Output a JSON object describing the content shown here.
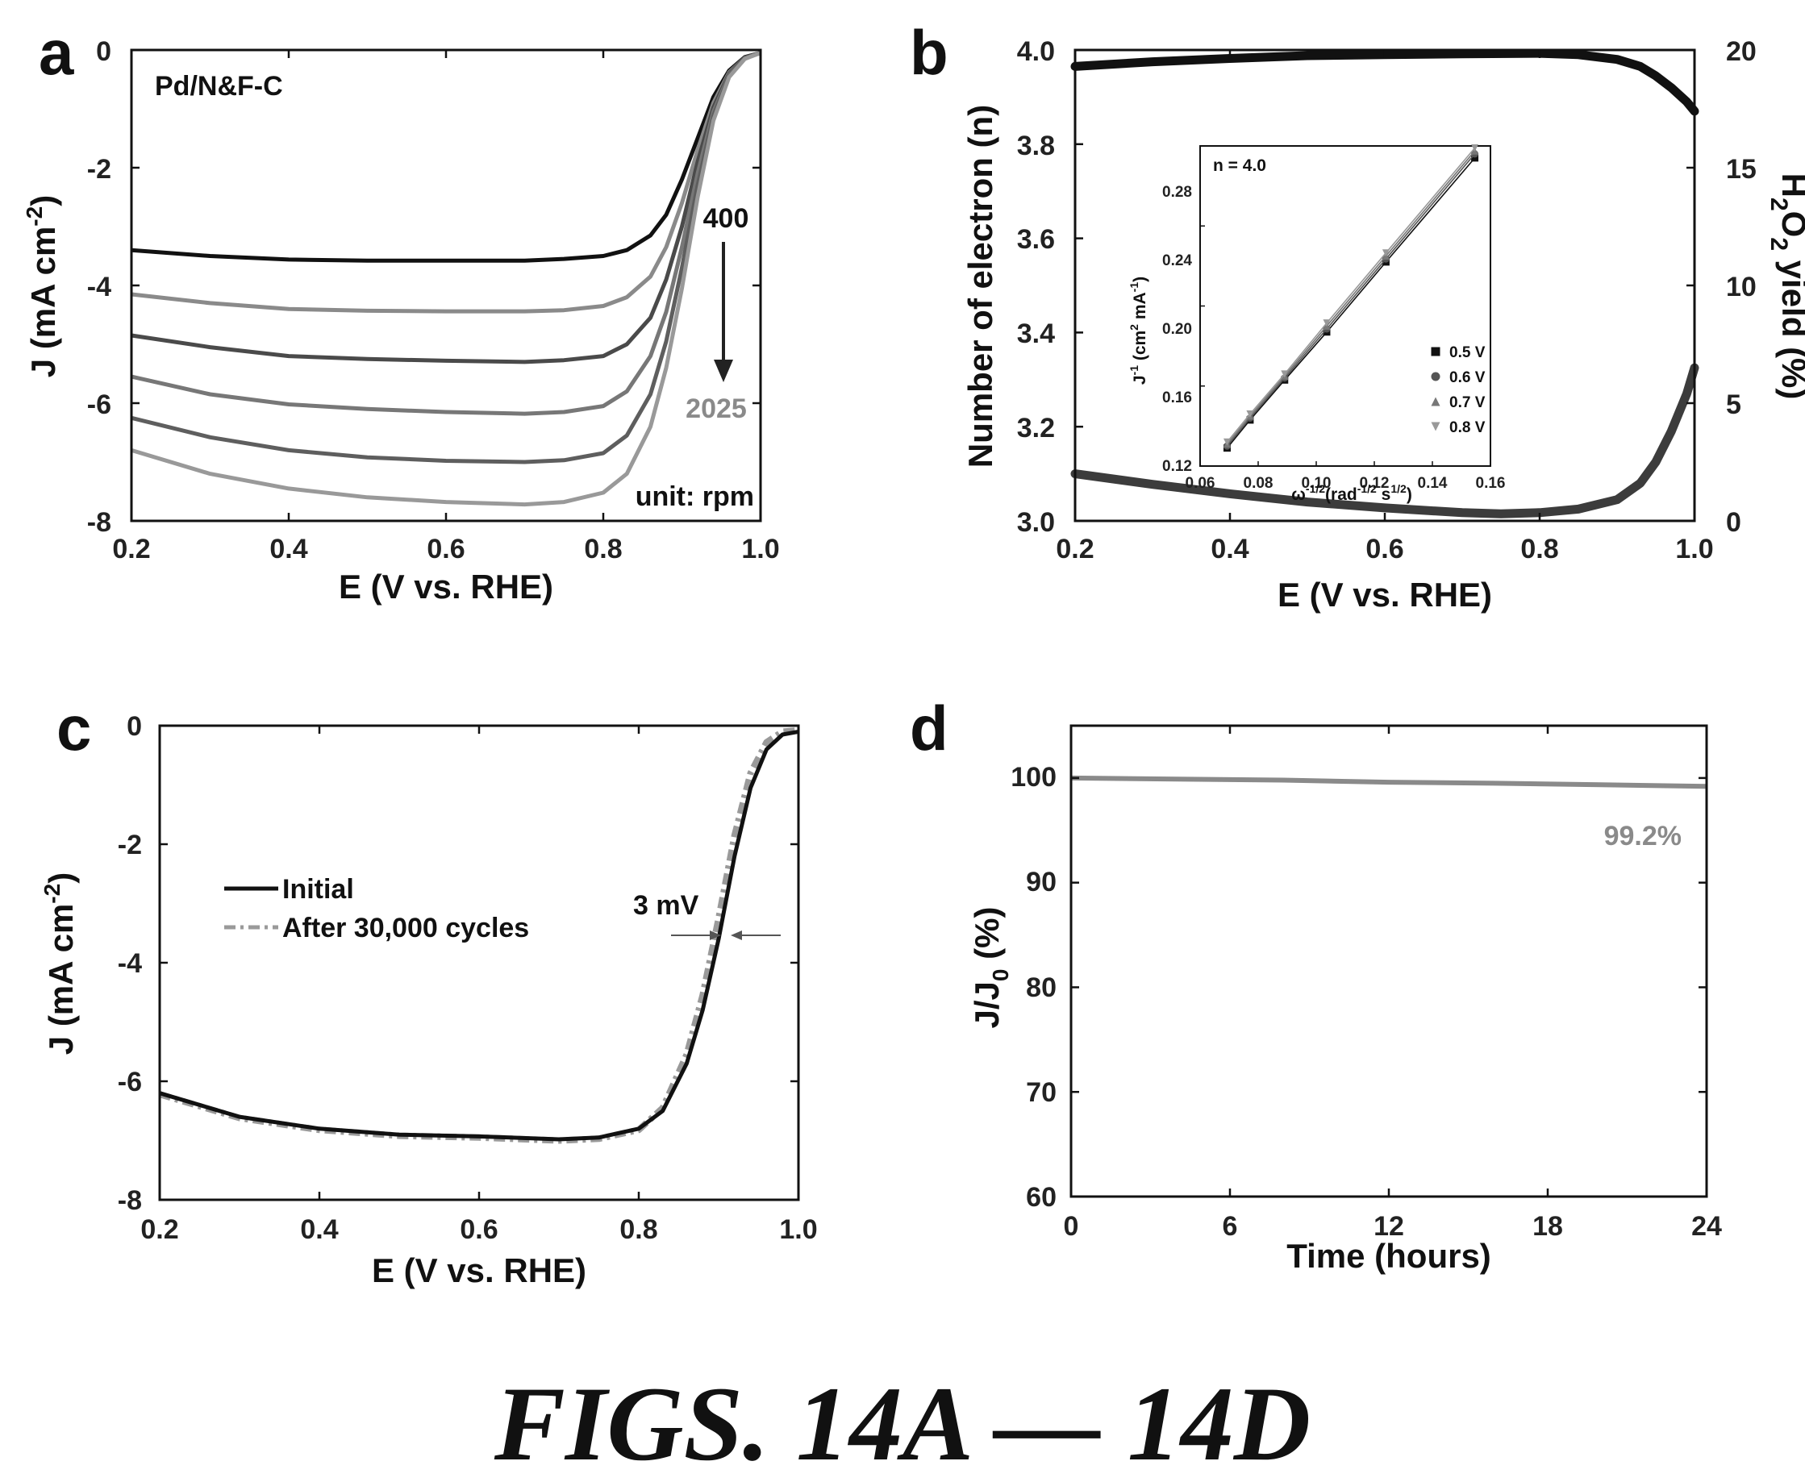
{
  "caption": "FIGS. 14A — 14D",
  "chart_data": [
    {
      "id": "a",
      "type": "line",
      "panel_label": "a",
      "xlabel": "E (V vs. RHE)",
      "ylabel": "J (mA cm",
      "ylabel_sup": "-2",
      "ylabel_end": ")",
      "xlim": [
        0.2,
        1.0
      ],
      "ylim": [
        -8,
        0
      ],
      "xticks": [
        "0.2",
        "0.4",
        "0.6",
        "0.8",
        "1.0"
      ],
      "yticks": [
        "0",
        "-2",
        "-4",
        "-6",
        "-8"
      ],
      "annotations": {
        "sample": "Pd/N&F-C",
        "rpm_low": "400",
        "rpm_high": "2025",
        "unit": "unit: rpm"
      },
      "series_colors": [
        "#111111",
        "#8a8a8a",
        "#4a4a4a",
        "#777777",
        "#5e5e5e",
        "#999999"
      ],
      "series": [
        {
          "values": [
            [
              0.2,
              -3.4
            ],
            [
              0.3,
              -3.5
            ],
            [
              0.4,
              -3.56
            ],
            [
              0.5,
              -3.58
            ],
            [
              0.6,
              -3.58
            ],
            [
              0.7,
              -3.58
            ],
            [
              0.75,
              -3.55
            ],
            [
              0.8,
              -3.5
            ],
            [
              0.83,
              -3.4
            ],
            [
              0.86,
              -3.15
            ],
            [
              0.88,
              -2.8
            ],
            [
              0.9,
              -2.2
            ],
            [
              0.92,
              -1.5
            ],
            [
              0.94,
              -0.8
            ],
            [
              0.96,
              -0.35
            ],
            [
              0.98,
              -0.12
            ],
            [
              1.0,
              -0.05
            ]
          ]
        },
        {
          "values": [
            [
              0.2,
              -4.15
            ],
            [
              0.3,
              -4.3
            ],
            [
              0.4,
              -4.4
            ],
            [
              0.5,
              -4.43
            ],
            [
              0.6,
              -4.44
            ],
            [
              0.7,
              -4.44
            ],
            [
              0.75,
              -4.42
            ],
            [
              0.8,
              -4.35
            ],
            [
              0.83,
              -4.2
            ],
            [
              0.86,
              -3.85
            ],
            [
              0.88,
              -3.35
            ],
            [
              0.9,
              -2.6
            ],
            [
              0.92,
              -1.7
            ],
            [
              0.94,
              -0.9
            ],
            [
              0.96,
              -0.38
            ],
            [
              0.98,
              -0.13
            ],
            [
              1.0,
              -0.05
            ]
          ]
        },
        {
          "values": [
            [
              0.2,
              -4.85
            ],
            [
              0.3,
              -5.05
            ],
            [
              0.4,
              -5.2
            ],
            [
              0.5,
              -5.25
            ],
            [
              0.6,
              -5.28
            ],
            [
              0.7,
              -5.3
            ],
            [
              0.75,
              -5.27
            ],
            [
              0.8,
              -5.2
            ],
            [
              0.83,
              -5.0
            ],
            [
              0.86,
              -4.55
            ],
            [
              0.88,
              -3.9
            ],
            [
              0.9,
              -3.0
            ],
            [
              0.92,
              -1.9
            ],
            [
              0.94,
              -0.98
            ],
            [
              0.96,
              -0.4
            ],
            [
              0.98,
              -0.13
            ],
            [
              1.0,
              -0.05
            ]
          ]
        },
        {
          "values": [
            [
              0.2,
              -5.55
            ],
            [
              0.3,
              -5.85
            ],
            [
              0.4,
              -6.02
            ],
            [
              0.5,
              -6.1
            ],
            [
              0.6,
              -6.15
            ],
            [
              0.7,
              -6.18
            ],
            [
              0.75,
              -6.15
            ],
            [
              0.8,
              -6.05
            ],
            [
              0.83,
              -5.8
            ],
            [
              0.86,
              -5.2
            ],
            [
              0.88,
              -4.45
            ],
            [
              0.9,
              -3.35
            ],
            [
              0.92,
              -2.1
            ],
            [
              0.94,
              -1.05
            ],
            [
              0.96,
              -0.42
            ],
            [
              0.98,
              -0.14
            ],
            [
              1.0,
              -0.05
            ]
          ]
        },
        {
          "values": [
            [
              0.2,
              -6.25
            ],
            [
              0.3,
              -6.58
            ],
            [
              0.4,
              -6.8
            ],
            [
              0.5,
              -6.92
            ],
            [
              0.6,
              -6.98
            ],
            [
              0.7,
              -7.0
            ],
            [
              0.75,
              -6.97
            ],
            [
              0.8,
              -6.85
            ],
            [
              0.83,
              -6.55
            ],
            [
              0.86,
              -5.85
            ],
            [
              0.88,
              -4.95
            ],
            [
              0.9,
              -3.7
            ],
            [
              0.92,
              -2.3
            ],
            [
              0.94,
              -1.12
            ],
            [
              0.96,
              -0.44
            ],
            [
              0.98,
              -0.14
            ],
            [
              1.0,
              -0.05
            ]
          ]
        },
        {
          "values": [
            [
              0.2,
              -6.8
            ],
            [
              0.3,
              -7.2
            ],
            [
              0.4,
              -7.45
            ],
            [
              0.5,
              -7.6
            ],
            [
              0.6,
              -7.68
            ],
            [
              0.7,
              -7.72
            ],
            [
              0.75,
              -7.68
            ],
            [
              0.8,
              -7.52
            ],
            [
              0.83,
              -7.2
            ],
            [
              0.86,
              -6.4
            ],
            [
              0.88,
              -5.4
            ],
            [
              0.9,
              -4.05
            ],
            [
              0.92,
              -2.5
            ],
            [
              0.94,
              -1.2
            ],
            [
              0.96,
              -0.46
            ],
            [
              0.98,
              -0.15
            ],
            [
              1.0,
              -0.05
            ]
          ]
        }
      ]
    },
    {
      "id": "b",
      "type": "line",
      "panel_label": "b",
      "xlabel": "E (V vs. RHE)",
      "ylabel": "Number of electron (n)",
      "y2label_parts": [
        "H",
        "2",
        "O",
        "2",
        " yield (%)"
      ],
      "xlim": [
        0.2,
        1.0
      ],
      "ylim": [
        3.0,
        4.0
      ],
      "y2lim": [
        0,
        20
      ],
      "xticks": [
        "0.2",
        "0.4",
        "0.6",
        "0.8",
        "1.0"
      ],
      "yticks": [
        "3.0",
        "3.2",
        "3.4",
        "3.6",
        "3.8",
        "4.0"
      ],
      "y2ticks": [
        "0",
        "5",
        "10",
        "15",
        "20"
      ],
      "series_colors": [
        "#111111",
        "#3c3c3c"
      ],
      "series": [
        {
          "axis": "left",
          "values": [
            [
              0.2,
              3.965
            ],
            [
              0.3,
              3.975
            ],
            [
              0.4,
              3.982
            ],
            [
              0.5,
              3.988
            ],
            [
              0.6,
              3.99
            ],
            [
              0.7,
              3.992
            ],
            [
              0.8,
              3.993
            ],
            [
              0.85,
              3.99
            ],
            [
              0.9,
              3.98
            ],
            [
              0.93,
              3.965
            ],
            [
              0.95,
              3.945
            ],
            [
              0.97,
              3.92
            ],
            [
              0.99,
              3.89
            ],
            [
              1.0,
              3.87
            ]
          ]
        },
        {
          "axis": "right",
          "values": [
            [
              0.2,
              2.0
            ],
            [
              0.3,
              1.55
            ],
            [
              0.4,
              1.15
            ],
            [
              0.5,
              0.8
            ],
            [
              0.6,
              0.55
            ],
            [
              0.7,
              0.35
            ],
            [
              0.75,
              0.3
            ],
            [
              0.8,
              0.35
            ],
            [
              0.85,
              0.5
            ],
            [
              0.9,
              0.9
            ],
            [
              0.93,
              1.6
            ],
            [
              0.95,
              2.5
            ],
            [
              0.97,
              3.8
            ],
            [
              0.99,
              5.4
            ],
            [
              1.0,
              6.5
            ]
          ]
        }
      ],
      "inset": {
        "type": "line",
        "annotation": "n = 4.0",
        "xlabel_parts": [
          "ω",
          "-1/2",
          "(rad",
          "-1/2",
          " s",
          "1/2",
          ")"
        ],
        "ylabel_parts": [
          "J",
          "-1",
          " (cm",
          "2",
          " mA",
          "-1",
          ")"
        ],
        "xlim": [
          0.06,
          0.16
        ],
        "ylim": [
          0.12,
          0.28
        ],
        "xticks": [
          "0.06",
          "0.08",
          "0.10",
          "0.12",
          "0.14",
          "0.16"
        ],
        "yticks": [
          "0.12",
          "0.16",
          "0.20",
          "0.24",
          "0.28"
        ],
        "x": [
          0.0693,
          0.0772,
          0.0891,
          0.1036,
          0.124,
          0.1546
        ],
        "series_colors": [
          "#111111",
          "#555555",
          "#777777",
          "#999999"
        ],
        "series": [
          {
            "name": "0.5 V",
            "marker": "square",
            "y": [
              0.129,
              0.143,
              0.163,
              0.187,
              0.222,
              0.274
            ]
          },
          {
            "name": "0.6 V",
            "marker": "circle",
            "y": [
              0.13,
              0.144,
              0.164,
              0.1885,
              0.2235,
              0.276
            ]
          },
          {
            "name": "0.7 V",
            "marker": "triangle-up",
            "y": [
              0.131,
              0.145,
              0.165,
              0.19,
              0.225,
              0.2775
            ]
          },
          {
            "name": "0.8 V",
            "marker": "triangle-down",
            "y": [
              0.132,
              0.146,
              0.166,
              0.1915,
              0.2265,
              0.279
            ]
          }
        ]
      }
    },
    {
      "id": "c",
      "type": "line",
      "panel_label": "c",
      "xlabel": "E (V vs. RHE)",
      "ylabel": "J (mA cm",
      "ylabel_sup": "-2",
      "ylabel_end": ")",
      "xlim": [
        0.2,
        1.0
      ],
      "ylim": [
        -8,
        0
      ],
      "xticks": [
        "0.2",
        "0.4",
        "0.6",
        "0.8",
        "1.0"
      ],
      "yticks": [
        "0",
        "-2",
        "-4",
        "-6",
        "-8"
      ],
      "legend_placement": "center-left",
      "annotations": {
        "shift": "3 mV"
      },
      "series_colors": [
        "#111111",
        "#9a9a9a"
      ],
      "series": [
        {
          "name": "Initial",
          "style": "solid",
          "values": [
            [
              0.2,
              -6.2
            ],
            [
              0.3,
              -6.6
            ],
            [
              0.4,
              -6.8
            ],
            [
              0.5,
              -6.9
            ],
            [
              0.6,
              -6.93
            ],
            [
              0.7,
              -6.98
            ],
            [
              0.75,
              -6.95
            ],
            [
              0.8,
              -6.8
            ],
            [
              0.83,
              -6.5
            ],
            [
              0.86,
              -5.7
            ],
            [
              0.88,
              -4.8
            ],
            [
              0.9,
              -3.6
            ],
            [
              0.92,
              -2.2
            ],
            [
              0.94,
              -1.05
            ],
            [
              0.96,
              -0.4
            ],
            [
              0.98,
              -0.15
            ],
            [
              1.0,
              -0.1
            ]
          ]
        },
        {
          "name": "After 30,000 cycles",
          "style": "dash-dot",
          "values": [
            [
              0.2,
              -6.22
            ],
            [
              0.3,
              -6.62
            ],
            [
              0.4,
              -6.82
            ],
            [
              0.5,
              -6.92
            ],
            [
              0.6,
              -6.95
            ],
            [
              0.7,
              -7.0
            ],
            [
              0.75,
              -6.97
            ],
            [
              0.8,
              -6.82
            ],
            [
              0.83,
              -6.45
            ],
            [
              0.86,
              -5.55
            ],
            [
              0.88,
              -4.55
            ],
            [
              0.9,
              -3.25
            ],
            [
              0.92,
              -1.85
            ],
            [
              0.94,
              -0.8
            ],
            [
              0.96,
              -0.28
            ],
            [
              0.98,
              -0.1
            ],
            [
              1.0,
              -0.08
            ]
          ]
        }
      ]
    },
    {
      "id": "d",
      "type": "line",
      "panel_label": "d",
      "xlabel": "Time (hours)",
      "ylabel_parts": [
        "J/J",
        "0",
        " (%)"
      ],
      "xlim": [
        0,
        24
      ],
      "ylim": [
        60,
        105
      ],
      "xticks": [
        "0",
        "6",
        "12",
        "18",
        "24"
      ],
      "yticks": [
        "60",
        "70",
        "80",
        "90",
        "100"
      ],
      "annotations": {
        "retention": "99.2%"
      },
      "series_colors": [
        "#8a8a8a"
      ],
      "series": [
        {
          "values": [
            [
              0,
              100.0
            ],
            [
              4,
              99.9
            ],
            [
              8,
              99.8
            ],
            [
              12,
              99.6
            ],
            [
              16,
              99.5
            ],
            [
              20,
              99.35
            ],
            [
              24,
              99.2
            ]
          ]
        }
      ]
    }
  ]
}
